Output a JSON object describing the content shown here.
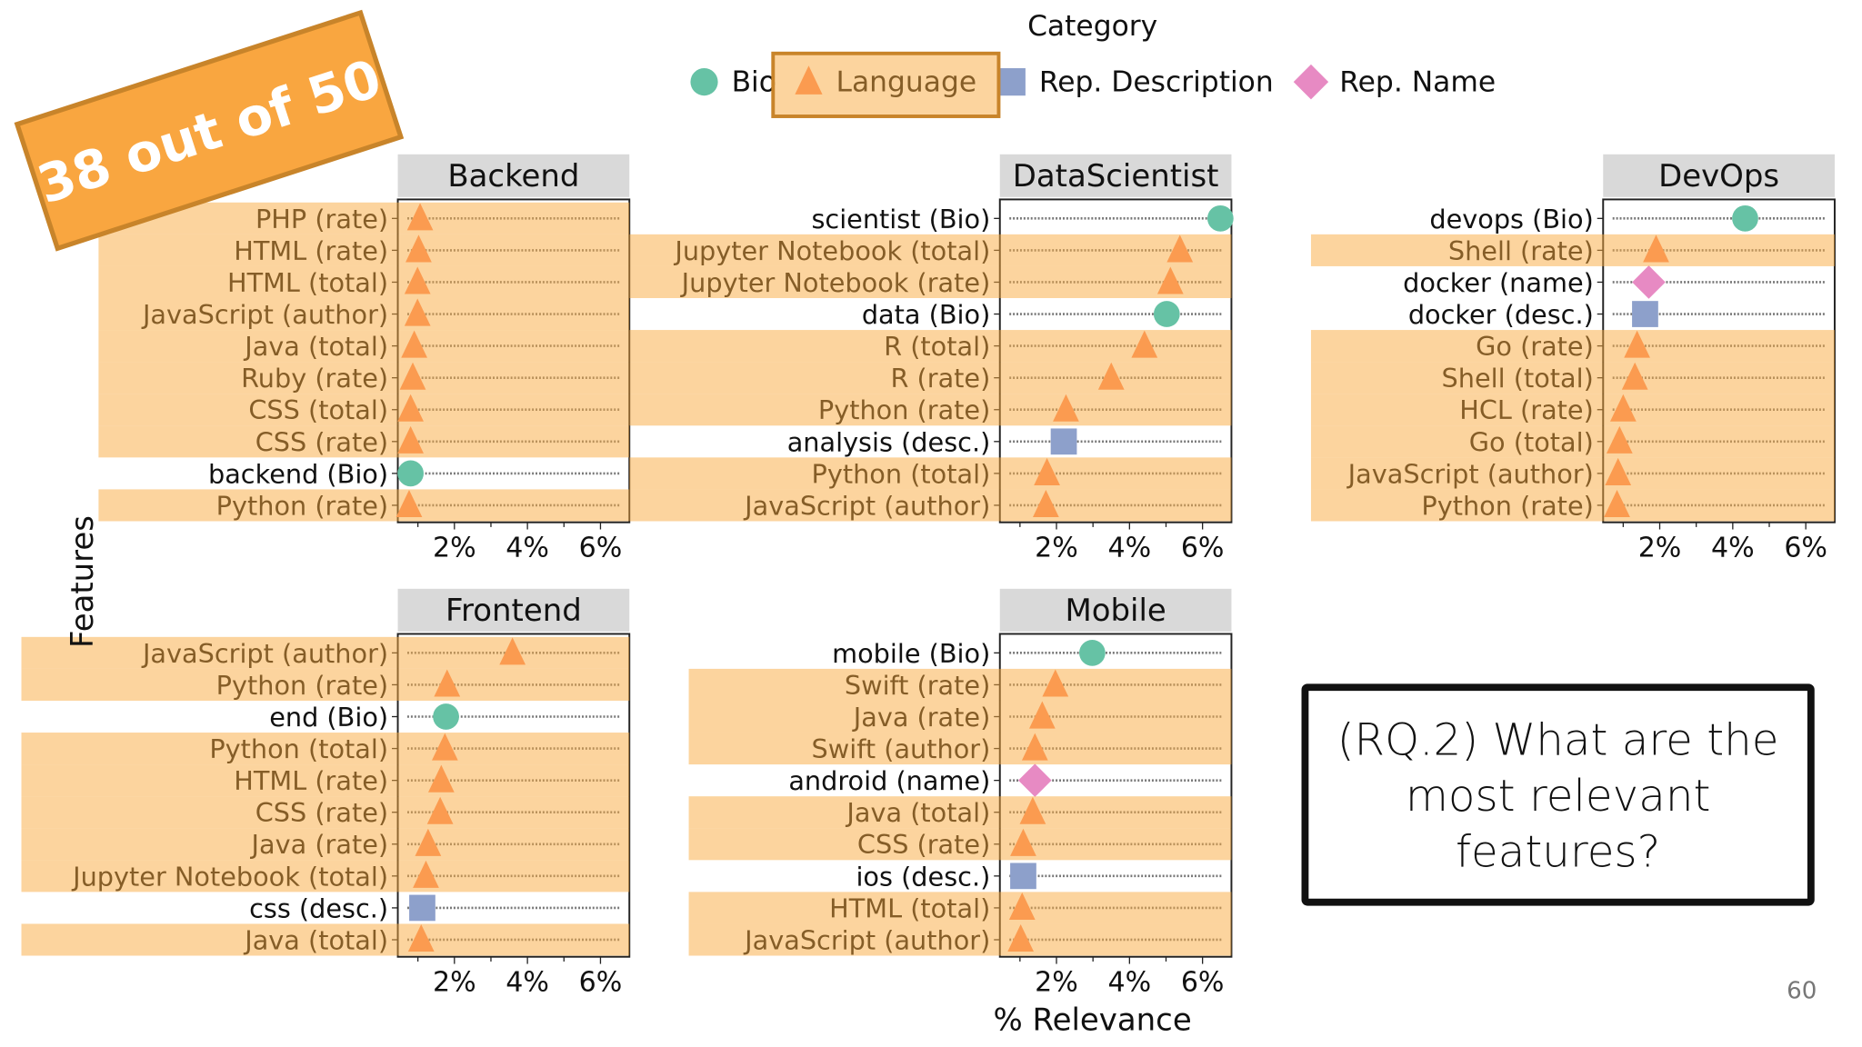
{
  "badge": {
    "text": "38 out of 50",
    "color": "#f9a640"
  },
  "legend": {
    "title": "Category",
    "highlighted": "Language",
    "items": [
      {
        "label": "Bio",
        "shape": "circle",
        "color": "#66c2a5"
      },
      {
        "label": "Language",
        "shape": "triangle",
        "color": "#fc8d62"
      },
      {
        "label": "Rep. Description",
        "shape": "square",
        "color": "#8da0cb"
      },
      {
        "label": "Rep. Name",
        "shape": "diamond",
        "color": "#e78ac3"
      }
    ]
  },
  "question": {
    "lines": [
      "(RQ.2) What are the",
      "most relevant",
      "features?"
    ]
  },
  "page_number": "60",
  "chart_data": {
    "type": "scatter",
    "subtype": "faceted dot plot",
    "xlabel": "% Relevance",
    "ylabel": "Features",
    "x_ticks": [
      "2%",
      "4%",
      "6%"
    ],
    "x_tick_values": [
      2,
      4,
      6
    ],
    "xlim": [
      0.45,
      6.8
    ],
    "highlight_color": "#f9aa3d",
    "panels": [
      {
        "title": "Backend",
        "rows": [
          {
            "label": "PHP (rate)",
            "category": "Language",
            "value": 1.06
          },
          {
            "label": "HTML (rate)",
            "category": "Language",
            "value": 1.02
          },
          {
            "label": "HTML (total)",
            "category": "Language",
            "value": 0.99
          },
          {
            "label": "JavaScript (author)",
            "category": "Language",
            "value": 0.99
          },
          {
            "label": "Java (total)",
            "category": "Language",
            "value": 0.9
          },
          {
            "label": "Ruby (rate)",
            "category": "Language",
            "value": 0.86
          },
          {
            "label": "CSS (total)",
            "category": "Language",
            "value": 0.8
          },
          {
            "label": "CSS (rate)",
            "category": "Language",
            "value": 0.8
          },
          {
            "label": "backend (Bio)",
            "category": "Bio",
            "value": 0.8
          },
          {
            "label": "Python (rate)",
            "category": "Language",
            "value": 0.76
          }
        ]
      },
      {
        "title": "DataScientist",
        "rows": [
          {
            "label": "scientist (Bio)",
            "category": "Bio",
            "value": 6.49
          },
          {
            "label": "Jupyter Notebook (total)",
            "category": "Language",
            "value": 5.38
          },
          {
            "label": "Jupyter Notebook (rate)",
            "category": "Language",
            "value": 5.12
          },
          {
            "label": "data (Bio)",
            "category": "Bio",
            "value": 5.02
          },
          {
            "label": "R (total)",
            "category": "Language",
            "value": 4.41
          },
          {
            "label": "R (rate)",
            "category": "Language",
            "value": 3.5
          },
          {
            "label": "Python (rate)",
            "category": "Language",
            "value": 2.26
          },
          {
            "label": "analysis (desc.)",
            "category": "Rep. Description",
            "value": 2.2
          },
          {
            "label": "Python (total)",
            "category": "Language",
            "value": 1.74
          },
          {
            "label": "JavaScript (author)",
            "category": "Language",
            "value": 1.71
          }
        ]
      },
      {
        "title": "DevOps",
        "rows": [
          {
            "label": "devops (Bio)",
            "category": "Bio",
            "value": 4.34
          },
          {
            "label": "Shell (rate)",
            "category": "Language",
            "value": 1.9
          },
          {
            "label": "docker (name)",
            "category": "Rep. Name",
            "value": 1.7
          },
          {
            "label": "docker (desc.)",
            "category": "Rep. Description",
            "value": 1.6
          },
          {
            "label": "Go (rate)",
            "category": "Language",
            "value": 1.38
          },
          {
            "label": "Shell (total)",
            "category": "Language",
            "value": 1.32
          },
          {
            "label": "HCL (rate)",
            "category": "Language",
            "value": 1.0
          },
          {
            "label": "Go (total)",
            "category": "Language",
            "value": 0.9
          },
          {
            "label": "JavaScript (author)",
            "category": "Language",
            "value": 0.86
          },
          {
            "label": "Python (rate)",
            "category": "Language",
            "value": 0.83
          }
        ]
      },
      {
        "title": "Frontend",
        "rows": [
          {
            "label": "JavaScript (author)",
            "category": "Language",
            "value": 3.59
          },
          {
            "label": "Python (rate)",
            "category": "Language",
            "value": 1.8
          },
          {
            "label": "end (Bio)",
            "category": "Bio",
            "value": 1.77
          },
          {
            "label": "Python (total)",
            "category": "Language",
            "value": 1.74
          },
          {
            "label": "HTML (rate)",
            "category": "Language",
            "value": 1.64
          },
          {
            "label": "CSS (rate)",
            "category": "Language",
            "value": 1.61
          },
          {
            "label": "Java (rate)",
            "category": "Language",
            "value": 1.28
          },
          {
            "label": "Jupyter Notebook (total)",
            "category": "Language",
            "value": 1.22
          },
          {
            "label": "css (desc.)",
            "category": "Rep. Description",
            "value": 1.12
          },
          {
            "label": "Java (total)",
            "category": "Language",
            "value": 1.09
          }
        ]
      },
      {
        "title": "Mobile",
        "rows": [
          {
            "label": "mobile (Bio)",
            "category": "Bio",
            "value": 2.98
          },
          {
            "label": "Swift (rate)",
            "category": "Language",
            "value": 1.97
          },
          {
            "label": "Java (rate)",
            "category": "Language",
            "value": 1.61
          },
          {
            "label": "Swift (author)",
            "category": "Language",
            "value": 1.41
          },
          {
            "label": "android (name)",
            "category": "Rep. Name",
            "value": 1.41
          },
          {
            "label": "Java (total)",
            "category": "Language",
            "value": 1.35
          },
          {
            "label": "CSS (rate)",
            "category": "Language",
            "value": 1.09
          },
          {
            "label": "ios (desc.)",
            "category": "Rep. Description",
            "value": 1.09
          },
          {
            "label": "HTML (total)",
            "category": "Language",
            "value": 1.06
          },
          {
            "label": "JavaScript (author)",
            "category": "Language",
            "value": 1.02
          }
        ]
      }
    ]
  }
}
